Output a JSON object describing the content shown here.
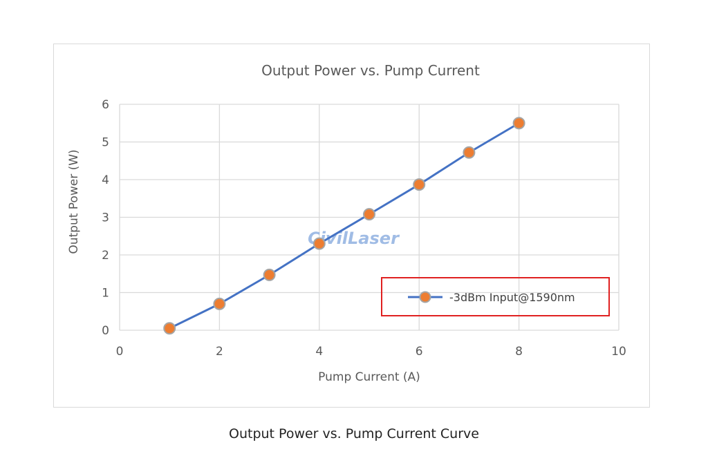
{
  "chart_data": {
    "type": "line",
    "title": "Output Power vs. Pump Current",
    "xlabel": "Pump Current (A)",
    "ylabel": "Output Power (W)",
    "xlim": [
      0,
      10
    ],
    "ylim": [
      0,
      6
    ],
    "x_ticks": [
      "0",
      "2",
      "4",
      "6",
      "8",
      "10"
    ],
    "y_ticks": [
      "0",
      "1",
      "2",
      "3",
      "4",
      "5",
      "6"
    ],
    "grid": true,
    "legend_position": "bottom-right",
    "series": [
      {
        "name": "-3dBm Input@1590nm",
        "line_color": "#4472c4",
        "marker_color": "#ed7d31",
        "x": [
          1,
          2,
          3,
          4,
          5,
          6,
          7,
          8
        ],
        "y": [
          0.05,
          0.7,
          1.47,
          2.3,
          3.08,
          3.87,
          4.72,
          5.5
        ]
      }
    ],
    "legend_highlight_color": "#e02020",
    "watermark": "CivilLaser"
  },
  "caption": "Output Power vs. Pump Current Curve"
}
